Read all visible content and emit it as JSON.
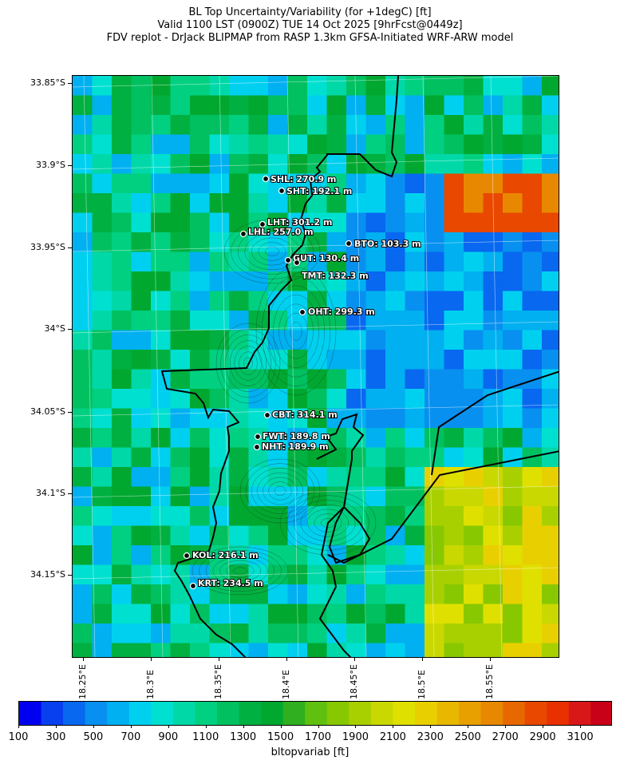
{
  "title": {
    "line1": "BL Top Uncertainty/Variability (for +1degC) [ft]",
    "line2": "Valid 1100 LST (0900Z) TUE 14 Oct 2025 [9hrFcst@0449z]",
    "line3": "FDV replot - DrJack BLIPMAP from RASP 1.3km GFSA-Initiated WRF-ARW model"
  },
  "axes": {
    "lat_labels": [
      "33.85°S",
      "33.9°S",
      "33.95°S",
      "34°S",
      "34.05°S",
      "34.1°S",
      "34.15°S"
    ],
    "lon_labels": [
      "18.25°E",
      "18.3°E",
      "18.35°E",
      "18.4°E",
      "18.45°E",
      "18.5°E",
      "18.55°E"
    ]
  },
  "stations": [
    {
      "id": "SHL",
      "label": "SHL: 270.9 m"
    },
    {
      "id": "SHT",
      "label": "SHT: 192.1 m"
    },
    {
      "id": "LHT",
      "label": "LHT: 301.2 m"
    },
    {
      "id": "LHL",
      "label": "LHL: 257.0 m"
    },
    {
      "id": "BTO",
      "label": "BTO: 103.3 m"
    },
    {
      "id": "GUT",
      "label": "GUT: 130.4 m"
    },
    {
      "id": "TMT",
      "label": "TMT: 132.3 m"
    },
    {
      "id": "OHT",
      "label": "OHT: 299.3 m"
    },
    {
      "id": "CBT",
      "label": "CBT: 314.1 m"
    },
    {
      "id": "FWT",
      "label": "FWT: 189.8 m"
    },
    {
      "id": "NHT",
      "label": "NHT: 189.9 m"
    },
    {
      "id": "KOL",
      "label": "KOL: 216.1 m"
    },
    {
      "id": "KRT",
      "label": "KRT: 234.5 m"
    }
  ],
  "colorbar": {
    "label": "bltopvariab [ft]",
    "ticks": [
      "100",
      "300",
      "500",
      "700",
      "900",
      "1100",
      "1300",
      "1500",
      "1700",
      "1900",
      "2100",
      "2300",
      "2500",
      "2700",
      "2900",
      "3100"
    ],
    "colors": [
      "#0000f0",
      "#0840f0",
      "#0868f0",
      "#0890f0",
      "#00b0f0",
      "#00d0f0",
      "#00e0d0",
      "#00d8a8",
      "#00d080",
      "#00c060",
      "#00b040",
      "#00a830",
      "#30b020",
      "#60c010",
      "#88c800",
      "#a8d000",
      "#c8d800",
      "#e0e000",
      "#e8d000",
      "#e8b800",
      "#e8a000",
      "#e88800",
      "#e86800",
      "#e84800",
      "#e83000",
      "#d81818",
      "#c80018"
    ]
  }
}
